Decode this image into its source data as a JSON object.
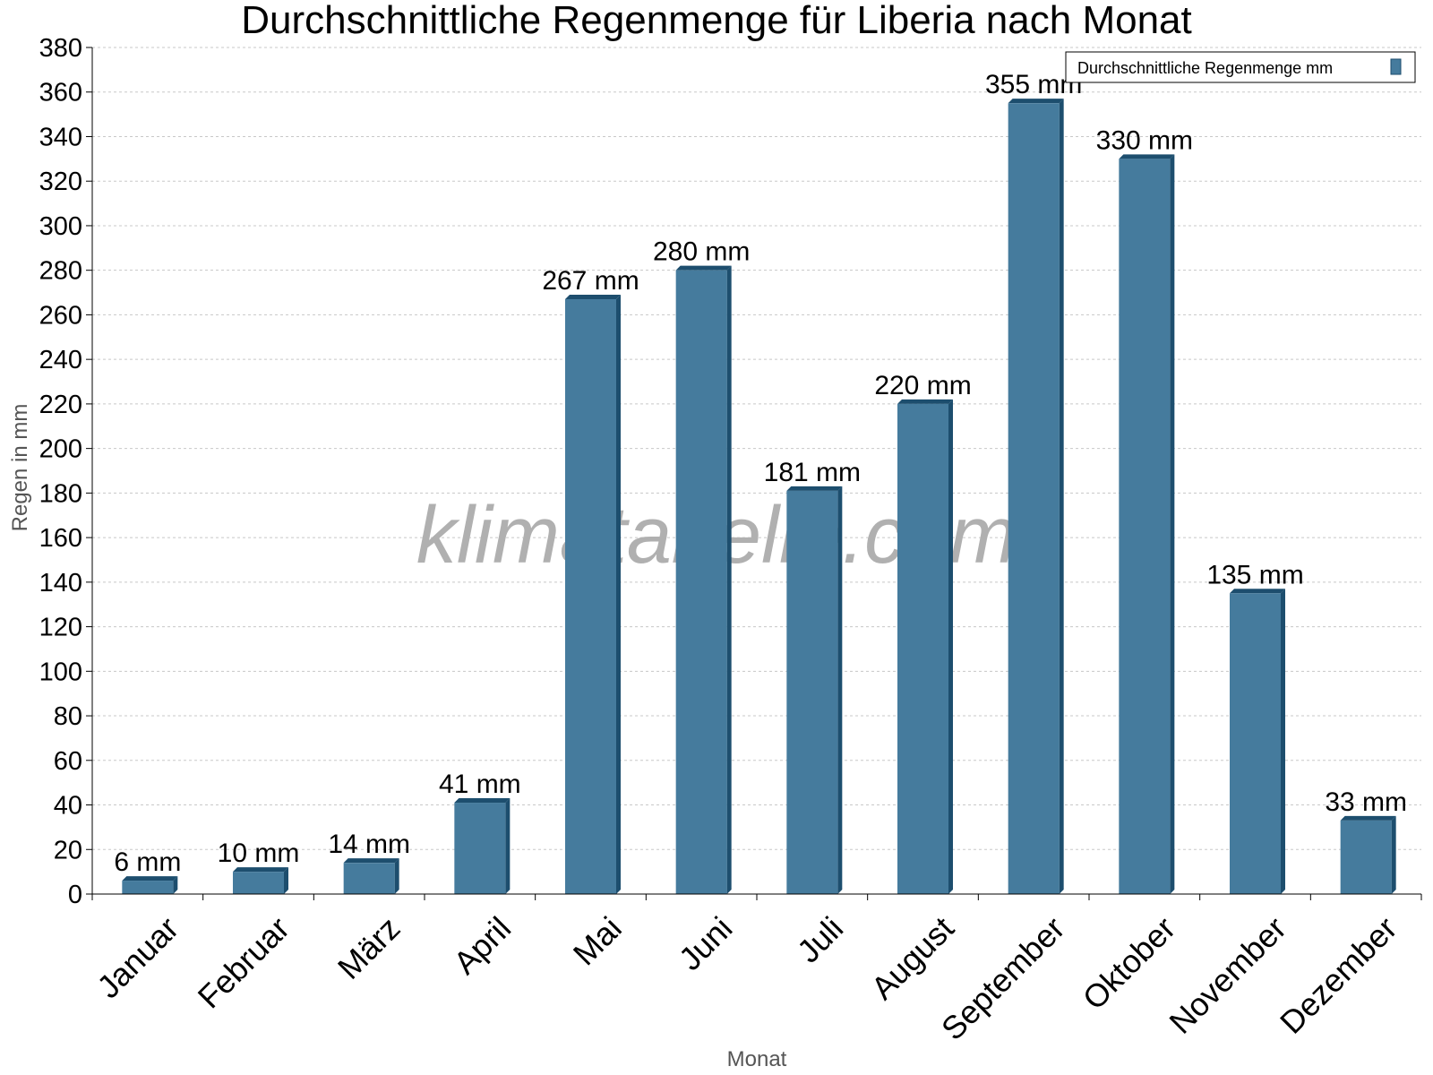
{
  "chart_data": {
    "type": "bar",
    "title": "Durchschnittliche Regenmenge für Liberia nach Monat",
    "xlabel": "Monat",
    "ylabel": "Regen in mm",
    "ylim": [
      0,
      380
    ],
    "ytick_step": 20,
    "grid": true,
    "legend_position": "top-right",
    "categories": [
      "Januar",
      "Februar",
      "März",
      "April",
      "Mai",
      "Juni",
      "Juli",
      "August",
      "September",
      "Oktober",
      "November",
      "Dezember"
    ],
    "series": [
      {
        "name": "Durchschnittliche Regenmenge mm",
        "values": [
          6,
          10,
          14,
          41,
          267,
          280,
          181,
          220,
          355,
          330,
          135,
          33
        ],
        "labels": [
          "6 mm",
          "10 mm",
          "14 mm",
          "41 mm",
          "267 mm",
          "280 mm",
          "181 mm",
          "220 mm",
          "355 mm",
          "330 mm",
          "135 mm",
          "33 mm"
        ],
        "color": "#457b9d",
        "shade_color": "#1d4e6e"
      }
    ]
  },
  "watermark": "klimatabelle.com"
}
